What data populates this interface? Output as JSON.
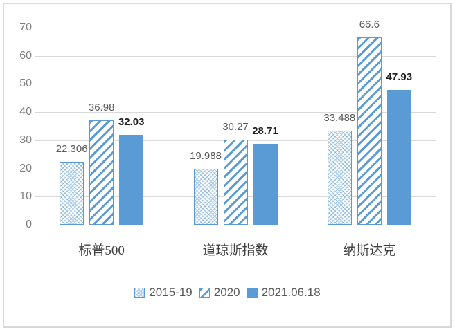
{
  "chart_data": {
    "type": "bar",
    "title": "",
    "xlabel": "",
    "ylabel": "",
    "categories": [
      "标普500",
      "道琼斯指数",
      "纳斯达克"
    ],
    "series": [
      {
        "name": "2015-19",
        "fill": "hatch-fine",
        "values": [
          22.306,
          19.988,
          33.488
        ],
        "labels": [
          "22.306",
          "19.988",
          "33.488"
        ],
        "label_style": "gray"
      },
      {
        "name": "2020",
        "fill": "hatch-diagonal",
        "values": [
          36.98,
          30.27,
          66.6
        ],
        "labels": [
          "36.98",
          "30.27",
          "66.6"
        ],
        "label_style": "gray"
      },
      {
        "name": "2021.06.18",
        "fill": "solid",
        "values": [
          32.03,
          28.71,
          47.93
        ],
        "labels": [
          "32.03",
          "28.71",
          "47.93"
        ],
        "label_style": "bold-black"
      }
    ],
    "ylim": [
      0,
      70
    ],
    "y_ticks": [
      0,
      10,
      20,
      30,
      40,
      50,
      60,
      70
    ],
    "grid": "horizontal",
    "legend_position": "bottom",
    "colors": {
      "bar_blue": "#5b9bd5",
      "hatch_light_blue": "#9dc3e6",
      "gridline": "#d9d9d9",
      "frame_border": "#d9d9d9",
      "y_label": "#7f7f7f",
      "value_label_gray": "#595959",
      "value_label_black": "#1f1f1f",
      "category_label": "#3f3f3f",
      "legend_text": "#595959",
      "background": "#ffffff"
    }
  }
}
